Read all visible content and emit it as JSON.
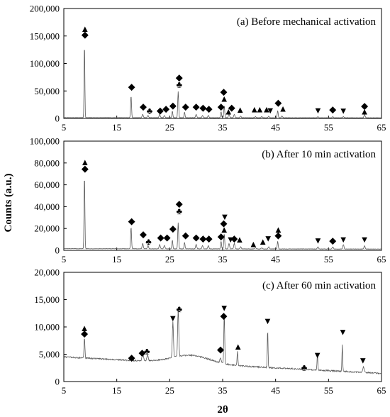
{
  "figure": {
    "ylabel": "Counts (a.u.)",
    "xlabel": "2θ"
  },
  "chart_data": [
    {
      "type": "line",
      "title": "(a) Before mechanical activation",
      "xlabel": "2θ",
      "ylabel": "Counts (a.u.)",
      "xlim": [
        5,
        65
      ],
      "ylim": [
        0,
        200000
      ],
      "xticks": [
        "5",
        "15",
        "25",
        "35",
        "45",
        "55",
        "65"
      ],
      "yticks": [
        "0",
        "50,000",
        "100,000",
        "150,000",
        "200,000"
      ],
      "background": {
        "start": 1500,
        "end": 1200
      },
      "noise": 400,
      "series": [
        {
          "peaks": [
            {
              "x": 8.9,
              "h": 137000,
              "w": 0.1
            },
            {
              "x": 17.7,
              "h": 40000,
              "w": 0.12
            },
            {
              "x": 19.9,
              "h": 6000,
              "w": 0.15
            },
            {
              "x": 20.9,
              "h": 4000,
              "w": 0.15
            },
            {
              "x": 23.1,
              "h": 6000,
              "w": 0.15
            },
            {
              "x": 24.0,
              "h": 4000,
              "w": 0.15
            },
            {
              "x": 25.5,
              "h": 12000,
              "w": 0.12
            },
            {
              "x": 26.6,
              "h": 48000,
              "w": 0.12
            },
            {
              "x": 27.8,
              "h": 10000,
              "w": 0.12
            },
            {
              "x": 30.0,
              "h": 6000,
              "w": 0.15
            },
            {
              "x": 31.2,
              "h": 4000,
              "w": 0.15
            },
            {
              "x": 32.3,
              "h": 4000,
              "w": 0.15
            },
            {
              "x": 34.7,
              "h": 11000,
              "w": 0.12
            },
            {
              "x": 35.3,
              "h": 22000,
              "w": 0.12
            },
            {
              "x": 36.2,
              "h": 6000,
              "w": 0.15
            },
            {
              "x": 37.2,
              "h": 6000,
              "w": 0.15
            },
            {
              "x": 38.4,
              "h": 3000,
              "w": 0.15
            },
            {
              "x": 41.2,
              "h": 2000,
              "w": 0.15
            },
            {
              "x": 42.4,
              "h": 2000,
              "w": 0.15
            },
            {
              "x": 43.7,
              "h": 2500,
              "w": 0.15
            },
            {
              "x": 45.4,
              "h": 13000,
              "w": 0.12
            },
            {
              "x": 46.2,
              "h": 3000,
              "w": 0.15
            },
            {
              "x": 53.0,
              "h": 2000,
              "w": 0.15
            },
            {
              "x": 55.8,
              "h": 2000,
              "w": 0.15
            },
            {
              "x": 57.8,
              "h": 2000,
              "w": 0.15
            },
            {
              "x": 61.8,
              "h": 6000,
              "w": 0.15
            }
          ]
        }
      ],
      "markers": [
        {
          "x": 9.0,
          "y": 163000,
          "symbol": "triangle-up"
        },
        {
          "x": 9.0,
          "y": 153000,
          "symbol": "diamond"
        },
        {
          "x": 17.8,
          "y": 58000,
          "symbol": "diamond"
        },
        {
          "x": 20.0,
          "y": 22000,
          "symbol": "diamond"
        },
        {
          "x": 21.2,
          "y": 14000,
          "symbol": "club"
        },
        {
          "x": 23.2,
          "y": 15000,
          "symbol": "diamond"
        },
        {
          "x": 24.3,
          "y": 18000,
          "symbol": "diamond"
        },
        {
          "x": 25.6,
          "y": 24000,
          "symbol": "diamond"
        },
        {
          "x": 26.8,
          "y": 75000,
          "symbol": "diamond"
        },
        {
          "x": 26.8,
          "y": 62000,
          "symbol": "club"
        },
        {
          "x": 28.0,
          "y": 22000,
          "symbol": "diamond"
        },
        {
          "x": 30.0,
          "y": 22000,
          "symbol": "diamond"
        },
        {
          "x": 31.3,
          "y": 20000,
          "symbol": "diamond"
        },
        {
          "x": 32.4,
          "y": 18000,
          "symbol": "diamond"
        },
        {
          "x": 34.7,
          "y": 22000,
          "symbol": "diamond"
        },
        {
          "x": 35.2,
          "y": 49000,
          "symbol": "diamond"
        },
        {
          "x": 35.3,
          "y": 36000,
          "symbol": "triangle-up"
        },
        {
          "x": 36.1,
          "y": 13000,
          "symbol": "triangle-up"
        },
        {
          "x": 36.7,
          "y": 20000,
          "symbol": "diamond"
        },
        {
          "x": 38.3,
          "y": 16000,
          "symbol": "triangle-up"
        },
        {
          "x": 41.0,
          "y": 17000,
          "symbol": "triangle-up"
        },
        {
          "x": 42.0,
          "y": 17000,
          "symbol": "triangle-up"
        },
        {
          "x": 43.3,
          "y": 17000,
          "symbol": "triangle-up"
        },
        {
          "x": 44.0,
          "y": 15000,
          "symbol": "triangle-down"
        },
        {
          "x": 45.5,
          "y": 29000,
          "symbol": "diamond"
        },
        {
          "x": 46.4,
          "y": 18000,
          "symbol": "triangle-up"
        },
        {
          "x": 53.0,
          "y": 15000,
          "symbol": "triangle-down"
        },
        {
          "x": 55.8,
          "y": 17000,
          "symbol": "diamond"
        },
        {
          "x": 57.8,
          "y": 14000,
          "symbol": "triangle-down"
        },
        {
          "x": 61.8,
          "y": 23000,
          "symbol": "diamond"
        },
        {
          "x": 61.8,
          "y": 13000,
          "symbol": "triangle-up"
        }
      ]
    },
    {
      "type": "line",
      "title": "(b) After 10 min activation",
      "xlabel": "2θ",
      "ylabel": "Counts (a.u.)",
      "xlim": [
        5,
        65
      ],
      "ylim": [
        0,
        100000
      ],
      "xticks": [
        "5",
        "15",
        "25",
        "35",
        "45",
        "55",
        "65"
      ],
      "yticks": [
        "0",
        "20,000",
        "40,000",
        "60,000",
        "80,000",
        "100,000"
      ],
      "background": {
        "start": 1500,
        "end": 1200
      },
      "noise": 300,
      "series": [
        {
          "peaks": [
            {
              "x": 8.9,
              "h": 68000,
              "w": 0.11
            },
            {
              "x": 17.7,
              "h": 20000,
              "w": 0.12
            },
            {
              "x": 19.9,
              "h": 5000,
              "w": 0.15
            },
            {
              "x": 20.9,
              "h": 3000,
              "w": 0.15
            },
            {
              "x": 23.1,
              "h": 4000,
              "w": 0.15
            },
            {
              "x": 24.0,
              "h": 3000,
              "w": 0.15
            },
            {
              "x": 25.5,
              "h": 8000,
              "w": 0.12
            },
            {
              "x": 26.6,
              "h": 24000,
              "w": 0.12
            },
            {
              "x": 27.8,
              "h": 6000,
              "w": 0.12
            },
            {
              "x": 30.0,
              "h": 4000,
              "w": 0.15
            },
            {
              "x": 31.2,
              "h": 3000,
              "w": 0.15
            },
            {
              "x": 32.3,
              "h": 3000,
              "w": 0.15
            },
            {
              "x": 34.7,
              "h": 7000,
              "w": 0.12
            },
            {
              "x": 35.3,
              "h": 14000,
              "w": 0.12
            },
            {
              "x": 36.2,
              "h": 5000,
              "w": 0.15
            },
            {
              "x": 37.2,
              "h": 5000,
              "w": 0.15
            },
            {
              "x": 38.4,
              "h": 2000,
              "w": 0.15
            },
            {
              "x": 41.2,
              "h": 1000,
              "w": 0.15
            },
            {
              "x": 42.4,
              "h": 1000,
              "w": 0.15
            },
            {
              "x": 43.7,
              "h": 2000,
              "w": 0.15
            },
            {
              "x": 45.4,
              "h": 7000,
              "w": 0.12
            },
            {
              "x": 53.0,
              "h": 2000,
              "w": 0.15
            },
            {
              "x": 55.8,
              "h": 2000,
              "w": 0.15
            },
            {
              "x": 57.8,
              "h": 4000,
              "w": 0.15
            },
            {
              "x": 61.8,
              "h": 3000,
              "w": 0.15
            }
          ]
        }
      ],
      "markers": [
        {
          "x": 9.0,
          "y": 81000,
          "symbol": "triangle-up"
        },
        {
          "x": 9.0,
          "y": 75000,
          "symbol": "diamond"
        },
        {
          "x": 17.8,
          "y": 27000,
          "symbol": "diamond"
        },
        {
          "x": 20.0,
          "y": 15000,
          "symbol": "diamond"
        },
        {
          "x": 21.0,
          "y": 8000,
          "symbol": "club"
        },
        {
          "x": 23.3,
          "y": 12000,
          "symbol": "diamond"
        },
        {
          "x": 24.5,
          "y": 12000,
          "symbol": "diamond"
        },
        {
          "x": 25.6,
          "y": 20000,
          "symbol": "diamond"
        },
        {
          "x": 26.8,
          "y": 43000,
          "symbol": "diamond"
        },
        {
          "x": 26.8,
          "y": 36000,
          "symbol": "club"
        },
        {
          "x": 28.0,
          "y": 14000,
          "symbol": "diamond"
        },
        {
          "x": 30.0,
          "y": 12000,
          "symbol": "diamond"
        },
        {
          "x": 31.3,
          "y": 11000,
          "symbol": "diamond"
        },
        {
          "x": 32.4,
          "y": 11000,
          "symbol": "diamond"
        },
        {
          "x": 34.7,
          "y": 13000,
          "symbol": "diamond"
        },
        {
          "x": 35.4,
          "y": 31000,
          "symbol": "triangle-down"
        },
        {
          "x": 35.2,
          "y": 25000,
          "symbol": "diamond"
        },
        {
          "x": 35.3,
          "y": 19000,
          "symbol": "triangle-up"
        },
        {
          "x": 36.5,
          "y": 10000,
          "symbol": "triangle-down"
        },
        {
          "x": 37.2,
          "y": 11000,
          "symbol": "diamond"
        },
        {
          "x": 38.2,
          "y": 10000,
          "symbol": "triangle-up"
        },
        {
          "x": 40.8,
          "y": 6000,
          "symbol": "triangle-up"
        },
        {
          "x": 42.6,
          "y": 8000,
          "symbol": "triangle-up"
        },
        {
          "x": 43.6,
          "y": 11000,
          "symbol": "triangle-down"
        },
        {
          "x": 45.5,
          "y": 19000,
          "symbol": "triangle-up"
        },
        {
          "x": 45.5,
          "y": 14000,
          "symbol": "diamond"
        },
        {
          "x": 53.0,
          "y": 9000,
          "symbol": "triangle-down"
        },
        {
          "x": 55.8,
          "y": 9000,
          "symbol": "diamond"
        },
        {
          "x": 57.8,
          "y": 10000,
          "symbol": "triangle-down"
        },
        {
          "x": 61.8,
          "y": 10000,
          "symbol": "triangle-down"
        }
      ]
    },
    {
      "type": "line",
      "title": "(c) After 60 min activation",
      "xlabel": "2θ",
      "ylabel": "Counts (a.u.)",
      "xlim": [
        5,
        65
      ],
      "ylim": [
        0,
        20000
      ],
      "xticks": [
        "5",
        "15",
        "25",
        "35",
        "45",
        "55",
        "65"
      ],
      "yticks": [
        "0",
        "5,000",
        "10,000",
        "15,000",
        "20,000"
      ],
      "background": {
        "start": 4500,
        "end": 1500,
        "hump": {
          "x": 29,
          "h": 1500,
          "w": 5
        }
      },
      "noise": 250,
      "series": [
        {
          "peaks": [
            {
              "x": 8.9,
              "h": 3700,
              "w": 0.12
            },
            {
              "x": 17.7,
              "h": 800,
              "w": 0.15
            },
            {
              "x": 19.9,
              "h": 1200,
              "w": 0.2
            },
            {
              "x": 20.8,
              "h": 1000,
              "w": 0.2
            },
            {
              "x": 25.6,
              "h": 6500,
              "w": 0.15
            },
            {
              "x": 26.6,
              "h": 8500,
              "w": 0.15
            },
            {
              "x": 34.6,
              "h": 800,
              "w": 0.2
            },
            {
              "x": 35.3,
              "h": 9000,
              "w": 0.12
            },
            {
              "x": 37.8,
              "h": 2500,
              "w": 0.12
            },
            {
              "x": 43.5,
              "h": 7000,
              "w": 0.1
            },
            {
              "x": 50.5,
              "h": 300,
              "w": 0.2
            },
            {
              "x": 52.9,
              "h": 3000,
              "w": 0.1
            },
            {
              "x": 57.6,
              "h": 5000,
              "w": 0.1
            },
            {
              "x": 61.6,
              "h": 1000,
              "w": 0.2
            }
          ]
        }
      ],
      "markers": [
        {
          "x": 8.9,
          "y": 9800,
          "symbol": "triangle-up"
        },
        {
          "x": 8.9,
          "y": 8800,
          "symbol": "diamond"
        },
        {
          "x": 17.8,
          "y": 4400,
          "symbol": "diamond"
        },
        {
          "x": 19.8,
          "y": 5300,
          "symbol": "diamond"
        },
        {
          "x": 20.7,
          "y": 5600,
          "symbol": "club"
        },
        {
          "x": 25.6,
          "y": 11600,
          "symbol": "triangle-down"
        },
        {
          "x": 26.8,
          "y": 13300,
          "symbol": "club"
        },
        {
          "x": 34.6,
          "y": 5900,
          "symbol": "diamond"
        },
        {
          "x": 35.3,
          "y": 13500,
          "symbol": "triangle-down"
        },
        {
          "x": 35.2,
          "y": 12100,
          "symbol": "diamond"
        },
        {
          "x": 37.9,
          "y": 6400,
          "symbol": "triangle-up"
        },
        {
          "x": 43.5,
          "y": 11100,
          "symbol": "triangle-down"
        },
        {
          "x": 50.4,
          "y": 2600,
          "symbol": "club"
        },
        {
          "x": 52.9,
          "y": 4900,
          "symbol": "triangle-down"
        },
        {
          "x": 57.7,
          "y": 9100,
          "symbol": "triangle-down"
        },
        {
          "x": 61.5,
          "y": 3900,
          "symbol": "triangle-down"
        }
      ]
    }
  ]
}
